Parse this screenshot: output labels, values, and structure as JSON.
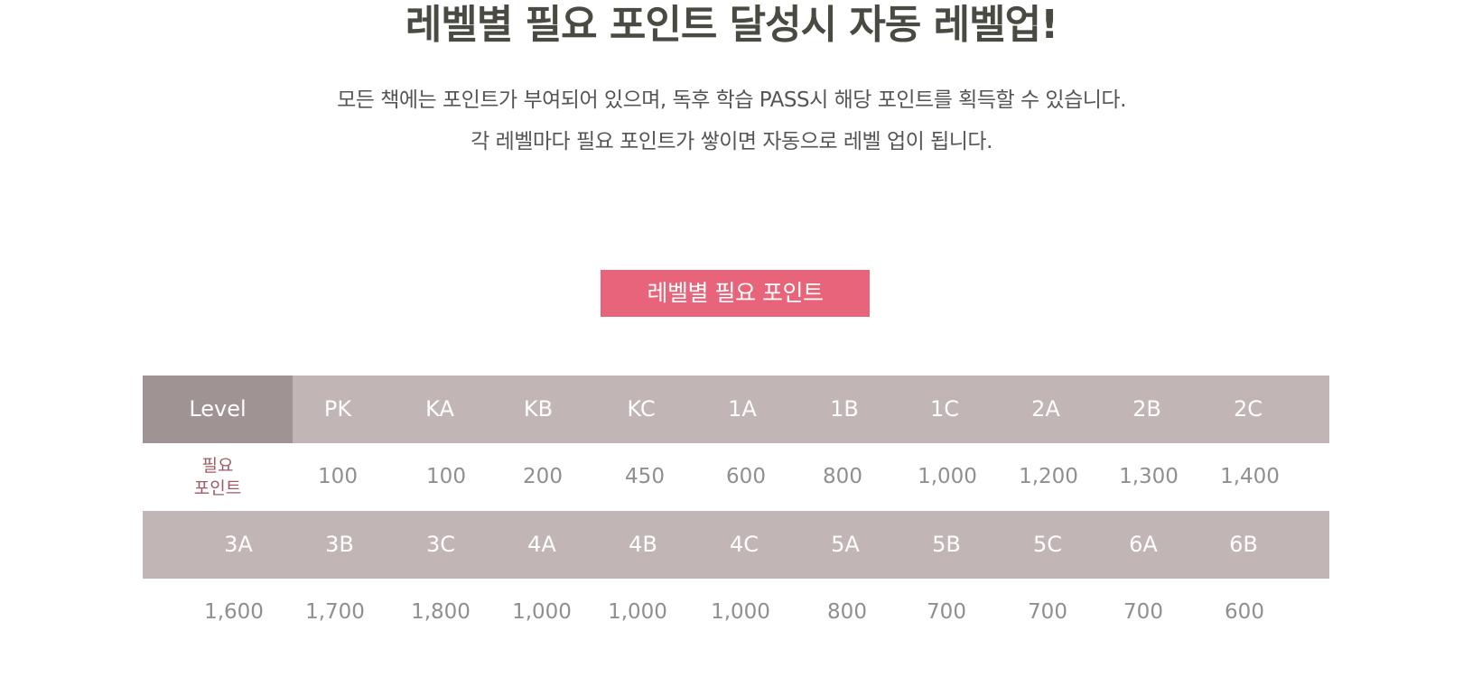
{
  "header": {
    "title": "레벨별 필요 포인트 달성시 자동 레벨업!",
    "desc_line1": "모든 책에는 포인트가 부여되어 있으며, 독후 학습 PASS시 해당 포인트를 획득할 수 있습니다.",
    "desc_line2": "각 레벨마다 필요 포인트가 쌓이면 자동으로 레벨 업이 됩니다."
  },
  "badge": {
    "label": "레벨별 필요 포인트"
  },
  "table": {
    "level_header": "Level",
    "points_header_line1": "필요",
    "points_header_line2": "포인트",
    "row1_levels": [
      "PK",
      "KA",
      "KB",
      "KC",
      "1A",
      "1B",
      "1C",
      "2A",
      "2B",
      "2C"
    ],
    "row1_points": [
      "100",
      "100",
      "200",
      "450",
      "600",
      "800",
      "1,000",
      "1,200",
      "1,300",
      "1,400"
    ],
    "row2_levels": [
      "3A",
      "3B",
      "3C",
      "4A",
      "4B",
      "4C",
      "5A",
      "5B",
      "5C",
      "6A",
      "6B"
    ],
    "row2_points": [
      "1,600",
      "1,700",
      "1,800",
      "1,000",
      "1,000",
      "1,000",
      "800",
      "700",
      "700",
      "700",
      "600"
    ]
  }
}
